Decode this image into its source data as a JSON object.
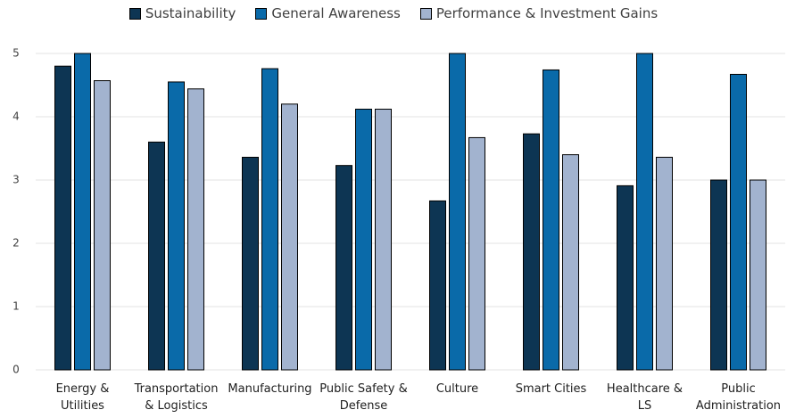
{
  "chart_data": {
    "type": "bar",
    "categories": [
      "Energy & Utilities",
      "Transportation & Logistics",
      "Manufacturing",
      "Public Safety & Defense",
      "Culture",
      "Smart Cities",
      "Healthcare & LS",
      "Public Administration"
    ],
    "series": [
      {
        "name": "Sustainability",
        "color": "#0d3553",
        "values": [
          4.8,
          3.6,
          3.36,
          3.23,
          2.67,
          3.73,
          2.91,
          3.0
        ]
      },
      {
        "name": "General Awareness",
        "color": "#0a6aa9",
        "values": [
          5,
          4.55,
          4.76,
          4.12,
          5,
          4.74,
          5,
          4.67
        ]
      },
      {
        "name": "Performance & Investment Gains",
        "color": "#a2b3cf",
        "values": [
          4.57,
          4.44,
          4.2,
          4.12,
          3.67,
          3.4,
          3.36,
          3.0
        ]
      }
    ],
    "ylim": [
      0,
      5
    ],
    "yticks": [
      0,
      1,
      2,
      3,
      4,
      5
    ],
    "grid": true,
    "legend": "top"
  }
}
